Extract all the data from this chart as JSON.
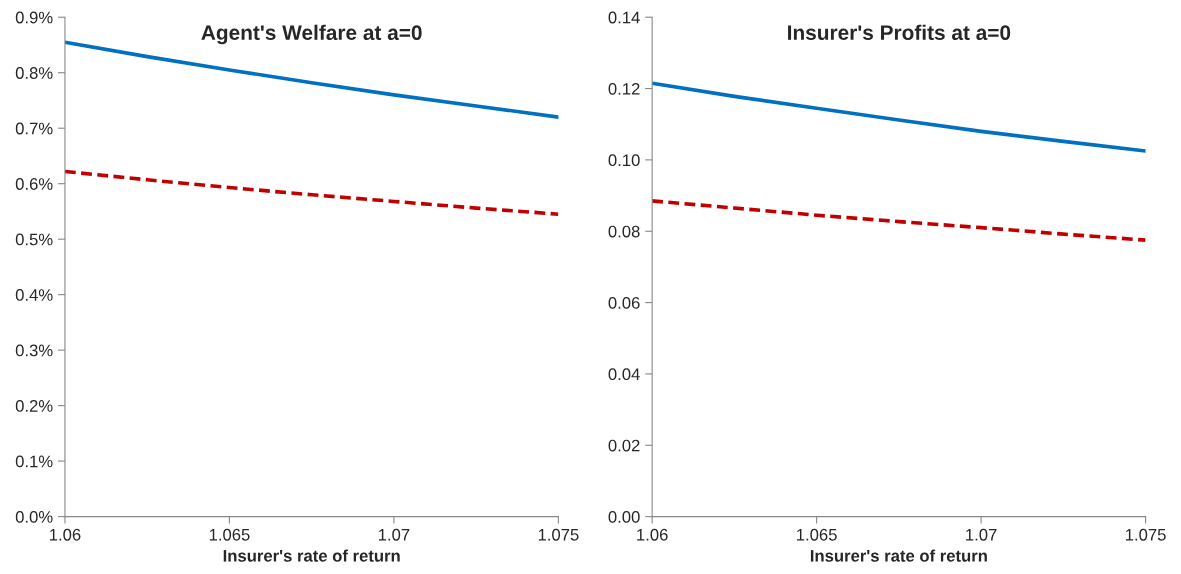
{
  "chart_data": [
    {
      "type": "line",
      "title": "Agent's Welfare at a=0",
      "xlabel": "Insurer's rate of return",
      "x": [
        1.06,
        1.0625,
        1.065,
        1.0675,
        1.07,
        1.0725,
        1.075
      ],
      "series": [
        {
          "color": "#0070c0",
          "line_style": "solid",
          "values": [
            0.855,
            0.829,
            0.805,
            0.782,
            0.76,
            0.74,
            0.72
          ]
        },
        {
          "color": "#c00000",
          "line_style": "dashed",
          "values": [
            0.622,
            0.607,
            0.593,
            0.58,
            0.568,
            0.556,
            0.545
          ]
        }
      ],
      "xlim": [
        1.06,
        1.075
      ],
      "xticks": [
        1.06,
        1.065,
        1.07,
        1.075
      ],
      "ylim": [
        0,
        0.9
      ],
      "yticks": [
        {
          "value": 0,
          "label": "0.0%"
        },
        {
          "value": 0.1,
          "label": "0.1%"
        },
        {
          "value": 0.2,
          "label": "0.2%"
        },
        {
          "value": 0.3,
          "label": "0.3%"
        },
        {
          "value": 0.4,
          "label": "0.4%"
        },
        {
          "value": 0.5,
          "label": "0.5%"
        },
        {
          "value": 0.6,
          "label": "0.6%"
        },
        {
          "value": 0.7,
          "label": "0.7%"
        },
        {
          "value": 0.8,
          "label": "0.8%"
        },
        {
          "value": 0.9,
          "label": "0.9%"
        }
      ],
      "grid": false,
      "legend": false
    },
    {
      "type": "line",
      "title": "Insurer's Profits at a=0",
      "xlabel": "Insurer's rate of return",
      "x": [
        1.06,
        1.0625,
        1.065,
        1.0675,
        1.07,
        1.0725,
        1.075
      ],
      "series": [
        {
          "color": "#0070c0",
          "line_style": "solid",
          "values": [
            0.1215,
            0.1178,
            0.1145,
            0.1112,
            0.108,
            0.1052,
            0.1025
          ]
        },
        {
          "color": "#c00000",
          "line_style": "dashed",
          "values": [
            0.0885,
            0.0865,
            0.0845,
            0.0827,
            0.081,
            0.0792,
            0.0775
          ]
        }
      ],
      "xlim": [
        1.06,
        1.075
      ],
      "xticks": [
        1.06,
        1.065,
        1.07,
        1.075
      ],
      "ylim": [
        0,
        0.14
      ],
      "yticks": [
        {
          "value": 0,
          "label": "0.00"
        },
        {
          "value": 0.02,
          "label": "0.02"
        },
        {
          "value": 0.04,
          "label": "0.04"
        },
        {
          "value": 0.06,
          "label": "0.06"
        },
        {
          "value": 0.08,
          "label": "0.08"
        },
        {
          "value": 0.1,
          "label": "0.10"
        },
        {
          "value": 0.12,
          "label": "0.12"
        },
        {
          "value": 0.14,
          "label": "0.14"
        }
      ],
      "grid": false,
      "legend": false
    }
  ]
}
